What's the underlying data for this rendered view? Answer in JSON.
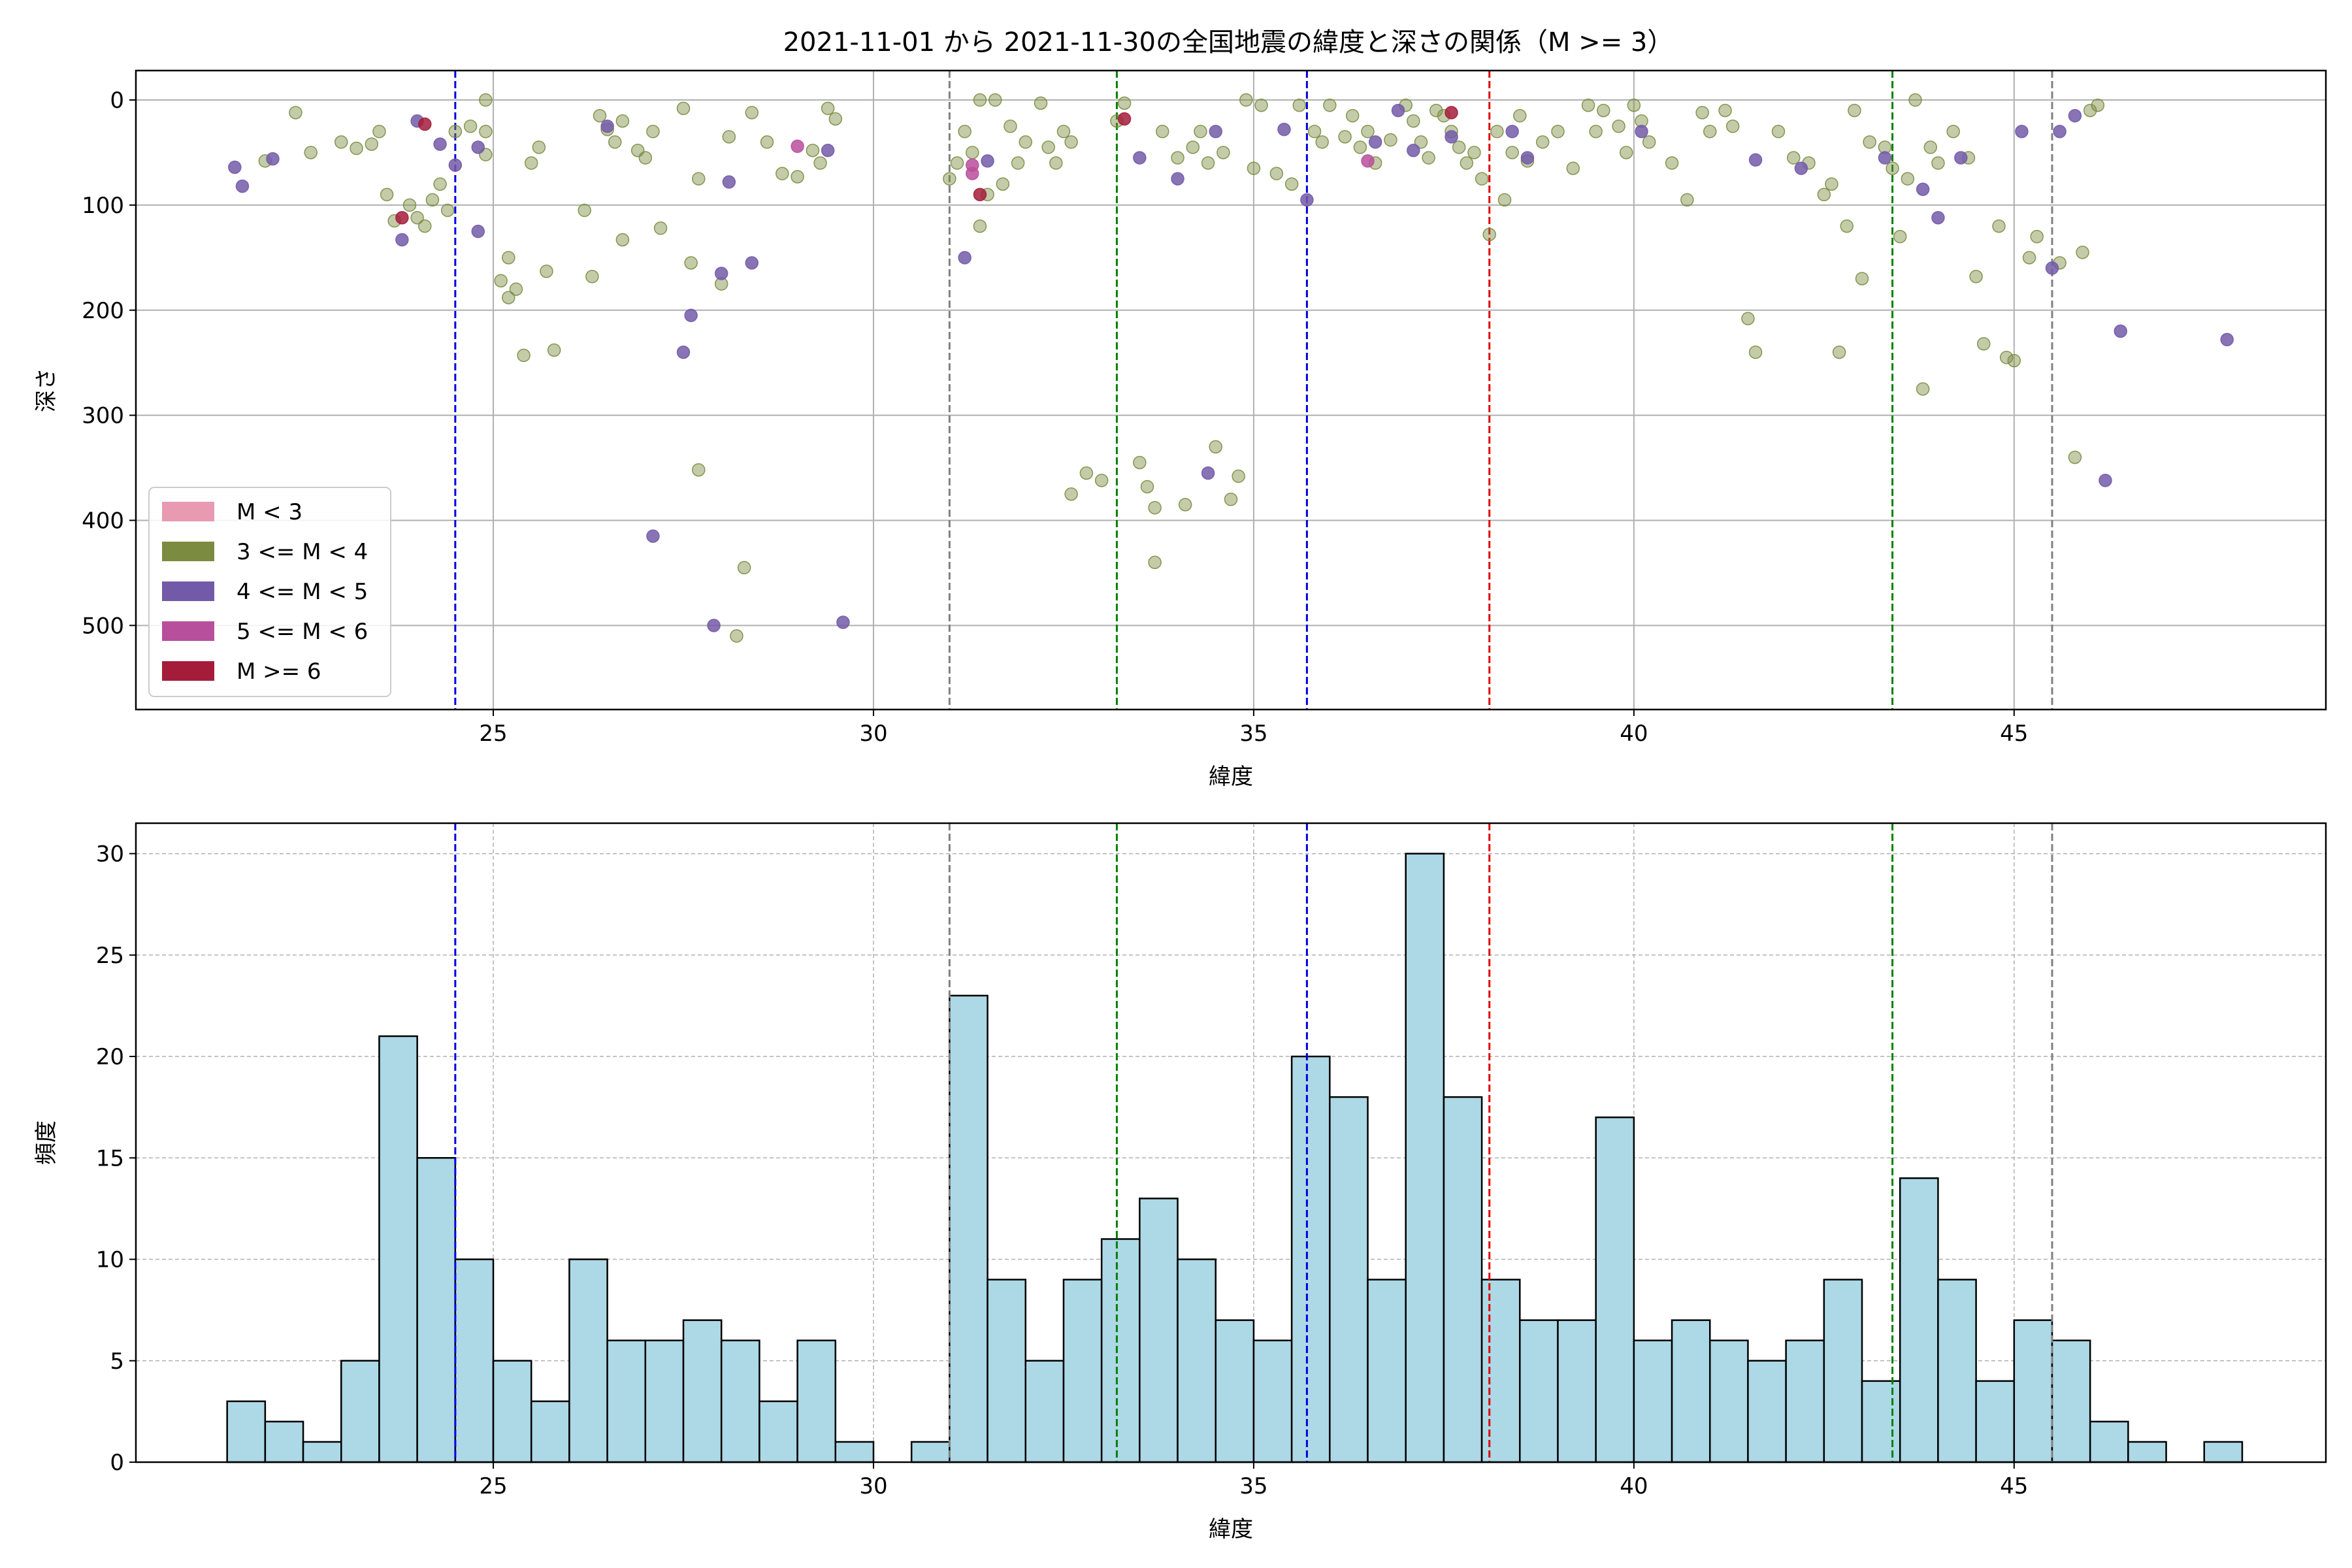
{
  "title": "2021-11-01 から 2021-11-30の全国地震の緯度と深さの関係（M >= 3）",
  "colors": {
    "m_lt3": "#e89ab3",
    "m_3_4": "#7b8c41",
    "m_4_5": "#735aa8",
    "m_5_6": "#b84f9c",
    "m_ge6": "#a51c3a",
    "hist_fill": "#add8e6",
    "vline_blue": "#0000dd",
    "vline_gray": "#808080",
    "vline_green": "#008000",
    "vline_red": "#dd0000"
  },
  "chart_data": [
    {
      "type": "scatter",
      "xlabel": "緯度",
      "ylabel": "深さ",
      "xlim": [
        20.3,
        49.1
      ],
      "ylim": [
        580,
        -28
      ],
      "xticks": [
        25,
        30,
        35,
        40,
        45
      ],
      "yticks": [
        0,
        100,
        200,
        300,
        400,
        500
      ],
      "grid": true,
      "legend": {
        "position": "lower-left",
        "entries": [
          {
            "label": "M < 3",
            "key": "m_lt3"
          },
          {
            "label": "3 <= M < 4",
            "key": "m_3_4"
          },
          {
            "label": "4 <= M < 5",
            "key": "m_4_5"
          },
          {
            "label": "5 <= M < 6",
            "key": "m_5_6"
          },
          {
            "label": "M >= 6",
            "key": "m_ge6"
          }
        ]
      },
      "vlines": [
        {
          "x": 24.5,
          "color": "vline_blue"
        },
        {
          "x": 31.0,
          "color": "vline_gray"
        },
        {
          "x": 33.2,
          "color": "vline_green"
        },
        {
          "x": 35.7,
          "color": "vline_blue"
        },
        {
          "x": 38.1,
          "color": "vline_red"
        },
        {
          "x": 43.4,
          "color": "vline_green"
        },
        {
          "x": 45.5,
          "color": "vline_gray"
        }
      ],
      "series": [
        {
          "name": "3 <= M < 4",
          "color": "m_3_4",
          "points": [
            [
              22.0,
              58
            ],
            [
              22.4,
              12
            ],
            [
              22.6,
              50
            ],
            [
              23.0,
              40
            ],
            [
              23.2,
              46
            ],
            [
              23.4,
              42
            ],
            [
              23.5,
              30
            ],
            [
              23.6,
              90
            ],
            [
              23.7,
              115
            ],
            [
              23.9,
              100
            ],
            [
              24.0,
              112
            ],
            [
              24.1,
              120
            ],
            [
              24.2,
              95
            ],
            [
              24.3,
              80
            ],
            [
              24.4,
              105
            ],
            [
              24.5,
              30
            ],
            [
              24.7,
              25
            ],
            [
              24.9,
              0
            ],
            [
              24.9,
              30
            ],
            [
              24.9,
              52
            ],
            [
              25.1,
              172
            ],
            [
              25.2,
              150
            ],
            [
              25.2,
              188
            ],
            [
              25.3,
              180
            ],
            [
              25.4,
              243
            ],
            [
              25.5,
              60
            ],
            [
              25.6,
              45
            ],
            [
              25.7,
              163
            ],
            [
              25.8,
              238
            ],
            [
              26.2,
              105
            ],
            [
              26.3,
              168
            ],
            [
              26.4,
              15
            ],
            [
              26.5,
              28
            ],
            [
              26.6,
              40
            ],
            [
              26.7,
              20
            ],
            [
              26.7,
              133
            ],
            [
              26.9,
              48
            ],
            [
              27.0,
              55
            ],
            [
              27.1,
              30
            ],
            [
              27.2,
              122
            ],
            [
              27.5,
              8
            ],
            [
              27.6,
              155
            ],
            [
              27.7,
              352
            ],
            [
              27.7,
              75
            ],
            [
              28.0,
              175
            ],
            [
              28.1,
              35
            ],
            [
              28.2,
              510
            ],
            [
              28.3,
              445
            ],
            [
              28.4,
              12
            ],
            [
              28.6,
              40
            ],
            [
              28.8,
              70
            ],
            [
              29.0,
              73
            ],
            [
              29.2,
              48
            ],
            [
              29.3,
              60
            ],
            [
              29.4,
              8
            ],
            [
              29.5,
              18
            ],
            [
              31.0,
              75
            ],
            [
              31.1,
              60
            ],
            [
              31.2,
              30
            ],
            [
              31.3,
              50
            ],
            [
              31.4,
              0
            ],
            [
              31.4,
              120
            ],
            [
              31.5,
              90
            ],
            [
              31.6,
              0
            ],
            [
              31.7,
              80
            ],
            [
              31.8,
              25
            ],
            [
              31.9,
              60
            ],
            [
              32.0,
              40
            ],
            [
              32.2,
              3
            ],
            [
              32.3,
              45
            ],
            [
              32.4,
              60
            ],
            [
              32.5,
              30
            ],
            [
              32.6,
              40
            ],
            [
              32.6,
              375
            ],
            [
              32.8,
              355
            ],
            [
              33.0,
              362
            ],
            [
              33.2,
              20
            ],
            [
              33.3,
              3
            ],
            [
              33.5,
              345
            ],
            [
              33.6,
              368
            ],
            [
              33.7,
              440
            ],
            [
              33.7,
              388
            ],
            [
              33.8,
              30
            ],
            [
              34.0,
              55
            ],
            [
              34.1,
              385
            ],
            [
              34.2,
              45
            ],
            [
              34.3,
              30
            ],
            [
              34.4,
              60
            ],
            [
              34.5,
              330
            ],
            [
              34.6,
              50
            ],
            [
              34.7,
              380
            ],
            [
              34.8,
              358
            ],
            [
              34.9,
              0
            ],
            [
              35.0,
              65
            ],
            [
              35.1,
              5
            ],
            [
              35.3,
              70
            ],
            [
              35.5,
              80
            ],
            [
              35.6,
              5
            ],
            [
              35.8,
              30
            ],
            [
              35.9,
              40
            ],
            [
              36.0,
              5
            ],
            [
              36.2,
              35
            ],
            [
              36.3,
              15
            ],
            [
              36.4,
              45
            ],
            [
              36.5,
              30
            ],
            [
              36.6,
              60
            ],
            [
              36.8,
              38
            ],
            [
              37.0,
              5
            ],
            [
              37.1,
              20
            ],
            [
              37.2,
              40
            ],
            [
              37.3,
              55
            ],
            [
              37.4,
              10
            ],
            [
              37.5,
              15
            ],
            [
              37.6,
              30
            ],
            [
              37.7,
              45
            ],
            [
              37.8,
              60
            ],
            [
              37.9,
              50
            ],
            [
              38.0,
              75
            ],
            [
              38.1,
              128
            ],
            [
              38.2,
              30
            ],
            [
              38.3,
              95
            ],
            [
              38.4,
              50
            ],
            [
              38.5,
              15
            ],
            [
              38.6,
              58
            ],
            [
              38.8,
              40
            ],
            [
              39.0,
              30
            ],
            [
              39.2,
              65
            ],
            [
              39.4,
              5
            ],
            [
              39.5,
              30
            ],
            [
              39.6,
              10
            ],
            [
              39.8,
              25
            ],
            [
              39.9,
              50
            ],
            [
              40.0,
              5
            ],
            [
              40.1,
              20
            ],
            [
              40.2,
              40
            ],
            [
              40.5,
              60
            ],
            [
              40.7,
              95
            ],
            [
              40.9,
              12
            ],
            [
              41.0,
              30
            ],
            [
              41.2,
              10
            ],
            [
              41.3,
              25
            ],
            [
              41.5,
              208
            ],
            [
              41.6,
              240
            ],
            [
              41.9,
              30
            ],
            [
              42.1,
              55
            ],
            [
              42.3,
              60
            ],
            [
              42.5,
              90
            ],
            [
              42.6,
              80
            ],
            [
              42.7,
              240
            ],
            [
              42.8,
              120
            ],
            [
              42.9,
              10
            ],
            [
              43.0,
              170
            ],
            [
              43.1,
              40
            ],
            [
              43.3,
              45
            ],
            [
              43.4,
              65
            ],
            [
              43.5,
              130
            ],
            [
              43.6,
              75
            ],
            [
              43.7,
              0
            ],
            [
              43.8,
              275
            ],
            [
              43.9,
              45
            ],
            [
              44.0,
              60
            ],
            [
              44.2,
              30
            ],
            [
              44.4,
              55
            ],
            [
              44.5,
              168
            ],
            [
              44.6,
              232
            ],
            [
              44.8,
              120
            ],
            [
              44.9,
              245
            ],
            [
              45.0,
              248
            ],
            [
              45.2,
              150
            ],
            [
              45.3,
              130
            ],
            [
              45.6,
              155
            ],
            [
              45.8,
              340
            ],
            [
              45.9,
              145
            ],
            [
              46.0,
              10
            ],
            [
              46.1,
              5
            ]
          ]
        },
        {
          "name": "4 <= M < 5",
          "color": "m_4_5",
          "points": [
            [
              21.6,
              64
            ],
            [
              21.7,
              82
            ],
            [
              22.1,
              56
            ],
            [
              23.8,
              133
            ],
            [
              24.0,
              20
            ],
            [
              24.3,
              42
            ],
            [
              24.5,
              62
            ],
            [
              24.8,
              45
            ],
            [
              24.8,
              125
            ],
            [
              27.1,
              415
            ],
            [
              27.5,
              240
            ],
            [
              27.6,
              205
            ],
            [
              27.9,
              500
            ],
            [
              28.0,
              165
            ],
            [
              28.1,
              78
            ],
            [
              28.4,
              155
            ],
            [
              29.4,
              48
            ],
            [
              29.6,
              497
            ],
            [
              31.2,
              150
            ],
            [
              31.5,
              58
            ],
            [
              33.5,
              55
            ],
            [
              34.0,
              75
            ],
            [
              34.5,
              30
            ],
            [
              35.4,
              28
            ],
            [
              35.7,
              95
            ],
            [
              36.6,
              40
            ],
            [
              36.9,
              10
            ],
            [
              37.1,
              48
            ],
            [
              37.6,
              35
            ],
            [
              38.4,
              30
            ],
            [
              38.6,
              55
            ],
            [
              40.1,
              30
            ],
            [
              41.6,
              57
            ],
            [
              42.2,
              65
            ],
            [
              43.3,
              55
            ],
            [
              43.8,
              85
            ],
            [
              44.0,
              112
            ],
            [
              44.3,
              55
            ],
            [
              45.1,
              30
            ],
            [
              45.5,
              160
            ],
            [
              45.6,
              30
            ],
            [
              45.8,
              15
            ],
            [
              46.4,
              220
            ],
            [
              46.2,
              362
            ],
            [
              47.8,
              228
            ],
            [
              34.4,
              355
            ],
            [
              26.5,
              25
            ]
          ]
        },
        {
          "name": "5 <= M < 6",
          "color": "m_5_6",
          "points": [
            [
              29.0,
              44
            ],
            [
              36.5,
              58
            ],
            [
              31.3,
              62
            ],
            [
              31.3,
              70
            ]
          ]
        },
        {
          "name": "M >= 6",
          "color": "m_ge6",
          "points": [
            [
              23.8,
              112
            ],
            [
              24.1,
              23
            ],
            [
              33.3,
              18
            ],
            [
              31.4,
              90
            ],
            [
              37.6,
              12
            ]
          ]
        }
      ]
    },
    {
      "type": "bar",
      "xlabel": "緯度",
      "ylabel": "頻度",
      "xlim": [
        20.3,
        49.1
      ],
      "ylim": [
        0,
        31.5
      ],
      "xticks": [
        25,
        30,
        35,
        40,
        45
      ],
      "yticks": [
        0,
        5,
        10,
        15,
        20,
        25,
        30
      ],
      "grid": true,
      "bin_start": 21.5,
      "bin_width": 0.5,
      "values": [
        3,
        2,
        1,
        5,
        21,
        15,
        10,
        5,
        3,
        10,
        6,
        6,
        7,
        6,
        3,
        6,
        1,
        0,
        1,
        23,
        9,
        5,
        9,
        11,
        13,
        10,
        7,
        6,
        20,
        18,
        9,
        30,
        18,
        9,
        7,
        7,
        17,
        6,
        7,
        6,
        5,
        6,
        9,
        4,
        14,
        9,
        4,
        7,
        6,
        2,
        1,
        0,
        1
      ],
      "vlines": [
        {
          "x": 24.5,
          "color": "vline_blue"
        },
        {
          "x": 31.0,
          "color": "vline_gray"
        },
        {
          "x": 33.2,
          "color": "vline_green"
        },
        {
          "x": 35.7,
          "color": "vline_blue"
        },
        {
          "x": 38.1,
          "color": "vline_red"
        },
        {
          "x": 43.4,
          "color": "vline_green"
        },
        {
          "x": 45.5,
          "color": "vline_gray"
        }
      ]
    }
  ]
}
